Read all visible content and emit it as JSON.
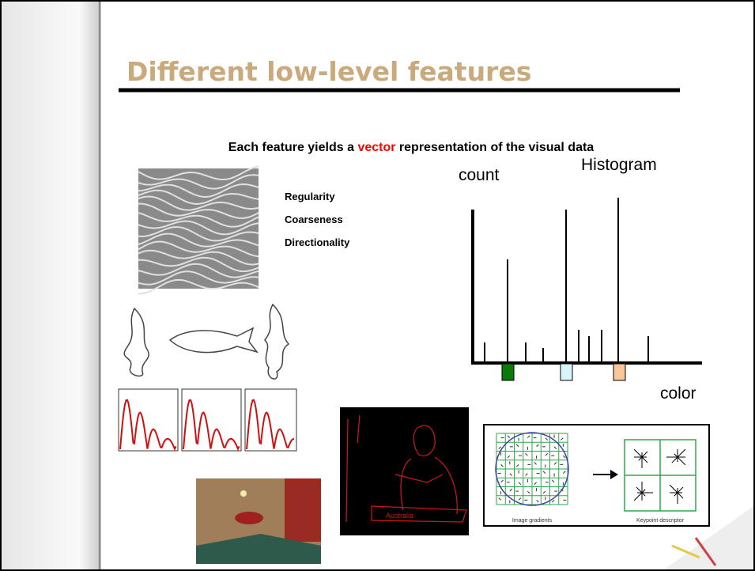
{
  "slide": {
    "title": "Different low-level features",
    "subtitle": {
      "before": "Each feature yields a",
      "highlight": "vector",
      "after": "representation of the visual data"
    },
    "texture_labels": [
      "Regularity",
      "Coarseness",
      "Directionality"
    ],
    "histogram": {
      "title": "Histogram",
      "y_label": "count",
      "x_label": "color"
    },
    "descriptor_captions": [
      "Image gradients",
      "Keypoint descriptor"
    ],
    "edge_image_caption": "Australia"
  }
}
